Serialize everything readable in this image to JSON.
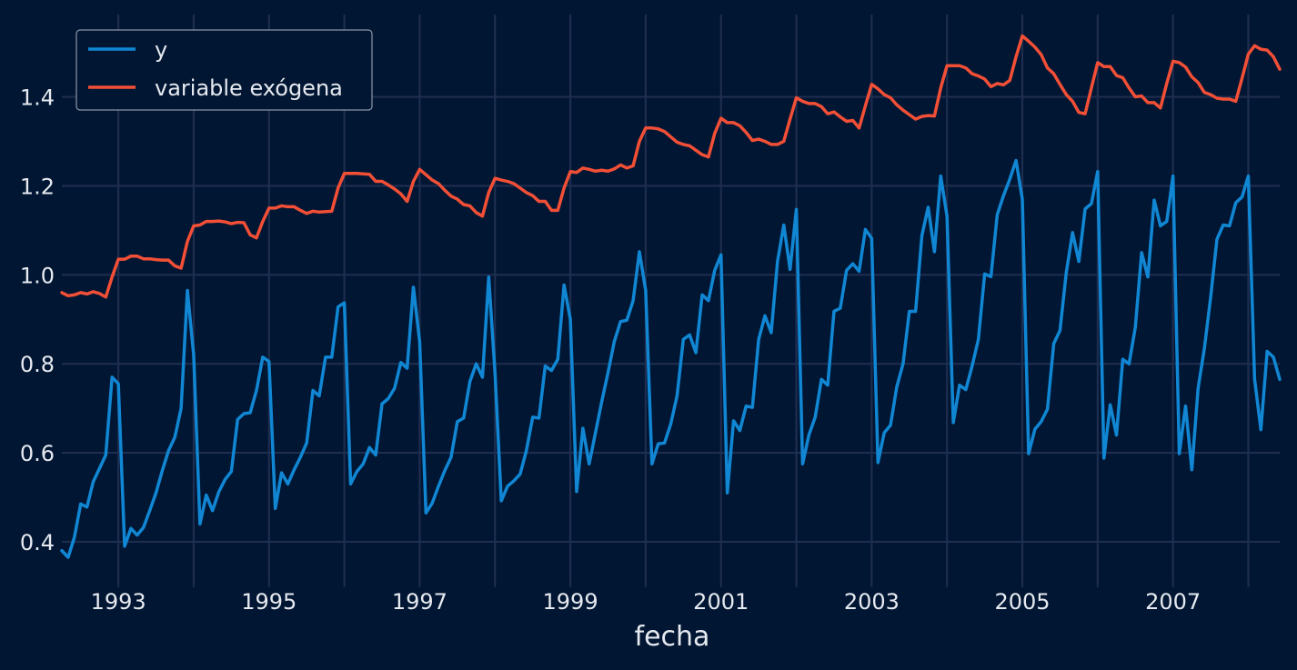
{
  "chart_data": {
    "type": "line",
    "xlabel": "fecha",
    "ylabel": "",
    "title": "",
    "x_ticks": [
      "1993",
      "1995",
      "1997",
      "1999",
      "2001",
      "2003",
      "2005",
      "2007"
    ],
    "y_ticks": [
      "0.4",
      "0.6",
      "0.8",
      "1.0",
      "1.2",
      "1.4"
    ],
    "xlim": [
      "1992-04",
      "2008-06"
    ],
    "ylim": [
      0.31,
      1.585
    ],
    "grid": true,
    "legend_position": "top-left",
    "colors": {
      "background": "#001633",
      "grid": "#1f2d4f",
      "text": "#e6e9ef"
    },
    "start_month": "1992-04",
    "series": [
      {
        "name": "y",
        "color": "#1187d4",
        "values": [
          0.38,
          0.365,
          0.41,
          0.485,
          0.478,
          0.535,
          0.565,
          0.595,
          0.77,
          0.755,
          0.39,
          0.43,
          0.415,
          0.432,
          0.47,
          0.51,
          0.56,
          0.605,
          0.635,
          0.7,
          0.965,
          0.82,
          0.44,
          0.505,
          0.47,
          0.512,
          0.54,
          0.558,
          0.675,
          0.688,
          0.69,
          0.74,
          0.815,
          0.805,
          0.475,
          0.555,
          0.53,
          0.562,
          0.59,
          0.622,
          0.74,
          0.728,
          0.815,
          0.815,
          0.928,
          0.937,
          0.53,
          0.558,
          0.575,
          0.612,
          0.595,
          0.71,
          0.722,
          0.745,
          0.803,
          0.79,
          0.972,
          0.85,
          0.465,
          0.487,
          0.525,
          0.56,
          0.59,
          0.67,
          0.678,
          0.76,
          0.8,
          0.77,
          0.995,
          0.78,
          0.492,
          0.525,
          0.537,
          0.552,
          0.605,
          0.68,
          0.678,
          0.795,
          0.785,
          0.81,
          0.977,
          0.9,
          0.513,
          0.655,
          0.575,
          0.645,
          0.715,
          0.78,
          0.85,
          0.895,
          0.898,
          0.942,
          1.052,
          0.965,
          0.575,
          0.62,
          0.622,
          0.665,
          0.728,
          0.855,
          0.865,
          0.825,
          0.955,
          0.942,
          1.01,
          1.045,
          0.51,
          0.672,
          0.65,
          0.705,
          0.702,
          0.855,
          0.908,
          0.87,
          1.03,
          1.112,
          1.012,
          1.147,
          0.575,
          0.64,
          0.68,
          0.765,
          0.752,
          0.918,
          0.925,
          1.01,
          1.025,
          1.008,
          1.102,
          1.082,
          0.578,
          0.645,
          0.662,
          0.748,
          0.8,
          0.918,
          0.918,
          1.088,
          1.152,
          1.052,
          1.222,
          1.132,
          0.668,
          0.752,
          0.742,
          0.795,
          0.855,
          1.002,
          0.996,
          1.135,
          1.178,
          1.215,
          1.257,
          1.17,
          0.598,
          0.653,
          0.67,
          0.698,
          0.845,
          0.875,
          1.005,
          1.095,
          1.03,
          1.148,
          1.16,
          1.232,
          0.588,
          0.708,
          0.64,
          0.81,
          0.8,
          0.882,
          1.05,
          0.995,
          1.168,
          1.11,
          1.12,
          1.222,
          0.598,
          0.705,
          0.562,
          0.745,
          0.835,
          0.95,
          1.08,
          1.112,
          1.11,
          1.162,
          1.175,
          1.222,
          0.765,
          0.652,
          0.828,
          0.815,
          0.765
        ]
      },
      {
        "name": "variable exógena",
        "color": "#f24f36",
        "values": [
          0.96,
          0.953,
          0.955,
          0.96,
          0.957,
          0.962,
          0.958,
          0.95,
          0.995,
          1.035,
          1.035,
          1.042,
          1.042,
          1.036,
          1.036,
          1.034,
          1.033,
          1.033,
          1.02,
          1.015,
          1.075,
          1.11,
          1.112,
          1.12,
          1.12,
          1.121,
          1.119,
          1.115,
          1.118,
          1.117,
          1.09,
          1.083,
          1.12,
          1.15,
          1.15,
          1.155,
          1.153,
          1.153,
          1.145,
          1.138,
          1.143,
          1.141,
          1.142,
          1.143,
          1.195,
          1.228,
          1.228,
          1.228,
          1.227,
          1.226,
          1.21,
          1.21,
          1.202,
          1.193,
          1.182,
          1.165,
          1.21,
          1.237,
          1.225,
          1.213,
          1.205,
          1.19,
          1.177,
          1.17,
          1.158,
          1.155,
          1.14,
          1.132,
          1.185,
          1.217,
          1.213,
          1.21,
          1.205,
          1.195,
          1.185,
          1.178,
          1.165,
          1.165,
          1.145,
          1.145,
          1.195,
          1.232,
          1.23,
          1.24,
          1.237,
          1.233,
          1.235,
          1.233,
          1.238,
          1.247,
          1.24,
          1.245,
          1.3,
          1.33,
          1.33,
          1.328,
          1.322,
          1.31,
          1.298,
          1.293,
          1.29,
          1.28,
          1.27,
          1.265,
          1.318,
          1.352,
          1.342,
          1.342,
          1.335,
          1.32,
          1.302,
          1.305,
          1.3,
          1.293,
          1.293,
          1.3,
          1.35,
          1.398,
          1.39,
          1.385,
          1.385,
          1.378,
          1.362,
          1.366,
          1.355,
          1.345,
          1.347,
          1.33,
          1.38,
          1.428,
          1.418,
          1.405,
          1.398,
          1.382,
          1.37,
          1.36,
          1.35,
          1.356,
          1.358,
          1.357,
          1.42,
          1.47,
          1.47,
          1.47,
          1.465,
          1.452,
          1.447,
          1.44,
          1.423,
          1.43,
          1.427,
          1.437,
          1.49,
          1.537,
          1.525,
          1.512,
          1.495,
          1.465,
          1.452,
          1.428,
          1.405,
          1.39,
          1.365,
          1.362,
          1.42,
          1.477,
          1.468,
          1.468,
          1.448,
          1.443,
          1.42,
          1.4,
          1.402,
          1.387,
          1.387,
          1.375,
          1.43,
          1.48,
          1.477,
          1.467,
          1.445,
          1.432,
          1.41,
          1.405,
          1.397,
          1.395,
          1.395,
          1.39,
          1.442,
          1.496,
          1.515,
          1.507,
          1.505,
          1.49,
          1.462
        ]
      }
    ]
  }
}
